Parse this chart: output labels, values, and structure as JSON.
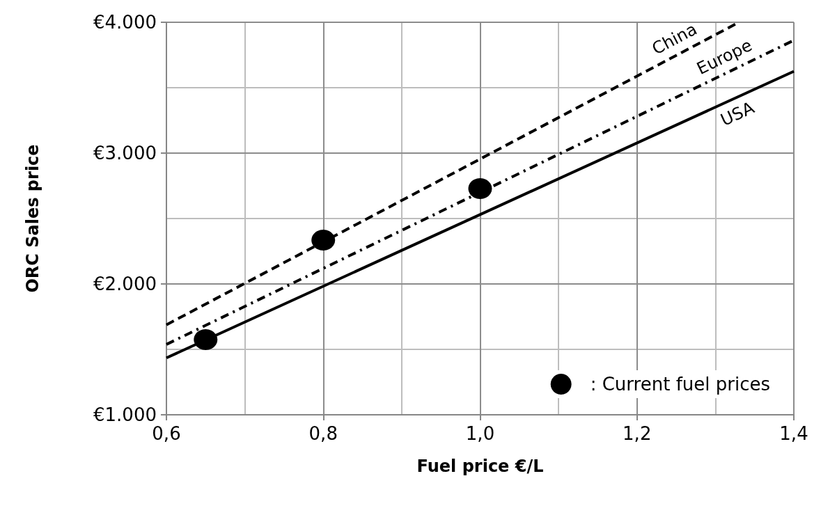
{
  "chart_data": {
    "type": "line",
    "xlabel": "Fuel price €/L",
    "ylabel": "ORC Sales price",
    "xlim": [
      0.6,
      1.4
    ],
    "xticks": [
      {
        "value": 0.6,
        "label": "0,6"
      },
      {
        "value": 0.8,
        "label": "0,8"
      },
      {
        "value": 1.0,
        "label": "1,0"
      },
      {
        "value": 1.2,
        "label": "1,2"
      },
      {
        "value": 1.4,
        "label": "1,4"
      }
    ],
    "ylim": [
      1000,
      4000
    ],
    "yticks": [
      {
        "value": 1000,
        "label": "€1.000"
      },
      {
        "value": 2000,
        "label": "€2.000"
      },
      {
        "value": 3000,
        "label": "€3.000"
      },
      {
        "value": 4000,
        "label": "€4.000"
      }
    ],
    "grid": true,
    "legend": "bottom right",
    "series": [
      {
        "name": "China",
        "color": "#000000",
        "line_style": "dashed",
        "marker": "none",
        "x": [
          0.6,
          1.33
        ],
        "values": [
          1688,
          4000
        ]
      },
      {
        "name": "Europe",
        "color": "#000000",
        "line_style": "dashdot",
        "marker": "none",
        "x": [
          0.6,
          1.4
        ],
        "values": [
          1538,
          3862
        ]
      },
      {
        "name": "USA",
        "color": "#000000",
        "line_style": "solid",
        "marker": "none",
        "x": [
          0.6,
          1.4
        ],
        "values": [
          1435,
          3625
        ]
      },
      {
        "name": ": Current fuel prices",
        "type": "scatter",
        "color": "#000000",
        "marker": "circle",
        "x": [
          0.65,
          0.8,
          1.0
        ],
        "values": [
          1575,
          2335,
          2729
        ]
      }
    ]
  }
}
